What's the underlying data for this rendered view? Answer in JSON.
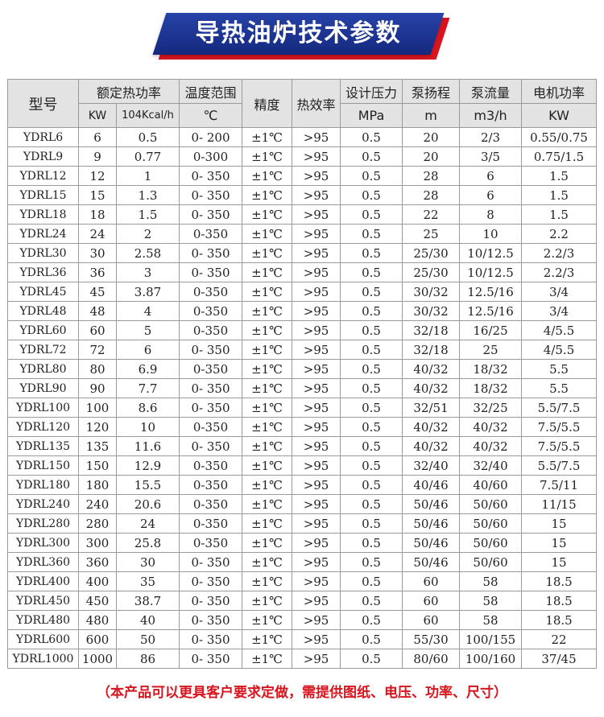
{
  "title": "导热油炉技术参数",
  "table": {
    "headers": {
      "model": "型号",
      "rated_power": "额定热功率",
      "rated_kw": "KW",
      "rated_kcal": "104Kcal/h",
      "temp_range": "温度范围",
      "temp_unit": "℃",
      "precision": "精度",
      "efficiency": "热效率",
      "pressure": "设计压力",
      "pressure_unit": "MPa",
      "pump_head": "泵扬程",
      "pump_head_unit": "m",
      "pump_flow": "泵流量",
      "pump_flow_unit": "m3/h",
      "motor_power": "电机功率",
      "motor_power_unit": "KW"
    },
    "rows": [
      [
        "YDRL6",
        "6",
        "0.5",
        "0- 200",
        "±1℃",
        ">95",
        "0.5",
        "20",
        "2/3",
        "0.55/0.75"
      ],
      [
        "YDRL9",
        "9",
        "0.77",
        "0-300",
        "±1℃",
        ">95",
        "0.5",
        "20",
        "3/5",
        "0.75/1.5"
      ],
      [
        "YDRL12",
        "12",
        "1",
        "0- 350",
        "±1℃",
        ">95",
        "0.5",
        "28",
        "6",
        "1.5"
      ],
      [
        "YDRL15",
        "15",
        "1.3",
        "0- 350",
        "±1℃",
        ">95",
        "0.5",
        "28",
        "6",
        "1.5"
      ],
      [
        "YDRL18",
        "18",
        "1.5",
        "0- 350",
        "±1℃",
        ">95",
        "0.5",
        "22",
        "8",
        "1.5"
      ],
      [
        "YDRL24",
        "24",
        "2",
        "0-350",
        "±1℃",
        ">95",
        "0.5",
        "25",
        "10",
        "2.2"
      ],
      [
        "YDRL30",
        "30",
        "2.58",
        "0- 350",
        "±1℃",
        ">95",
        "0.5",
        "25/30",
        "10/12.5",
        "2.2/3"
      ],
      [
        "YDRL36",
        "36",
        "3",
        "0- 350",
        "±1℃",
        ">95",
        "0.5",
        "25/30",
        "10/12.5",
        "2.2/3"
      ],
      [
        "YDRL45",
        "45",
        "3.87",
        "0-350",
        "±1℃",
        ">95",
        "0.5",
        "30/32",
        "12.5/16",
        "3/4"
      ],
      [
        "YDRL48",
        "48",
        "4",
        "0-350",
        "±1℃",
        ">95",
        "0.5",
        "30/32",
        "12.5/16",
        "3/4"
      ],
      [
        "YDRL60",
        "60",
        "5",
        "0-350",
        "±1℃",
        ">95",
        "0.5",
        "32/18",
        "16/25",
        "4/5.5"
      ],
      [
        "YDRL72",
        "72",
        "6",
        "0- 350",
        "±1℃",
        ">95",
        "0.5",
        "32/18",
        "25",
        "4/5.5"
      ],
      [
        "YDRL80",
        "80",
        "6.9",
        "0-350",
        "±1℃",
        ">95",
        "0.5",
        "40/32",
        "18/32",
        "5.5"
      ],
      [
        "YDRL90",
        "90",
        "7.7",
        "0- 350",
        "±1℃",
        ">95",
        "0.5",
        "40/32",
        "18/32",
        "5.5"
      ],
      [
        "YDRL100",
        "100",
        "8.6",
        "0- 350",
        "±1℃",
        ">95",
        "0.5",
        "32/51",
        "32/25",
        "5.5/7.5"
      ],
      [
        "YDRL120",
        "120",
        "10",
        "0-350",
        "±1℃",
        ">95",
        "0.5",
        "40/32",
        "40/32",
        "7.5/5.5"
      ],
      [
        "YDRL135",
        "135",
        "11.6",
        "0- 350",
        "±1℃",
        ">95",
        "0.5",
        "40/32",
        "40/32",
        "7.5/5.5"
      ],
      [
        "YDRL150",
        "150",
        "12.9",
        "0-350",
        "±1℃",
        ">95",
        "0.5",
        "32/40",
        "32/40",
        "5.5/7.5"
      ],
      [
        "YDRL180",
        "180",
        "15.5",
        "0-350",
        "±1℃",
        ">95",
        "0.5",
        "40/46",
        "40/60",
        "7.5/11"
      ],
      [
        "YDRL240",
        "240",
        "20.6",
        "0-350",
        "±1℃",
        ">95",
        "0.5",
        "50/46",
        "50/60",
        "11/15"
      ],
      [
        "YDRL280",
        "280",
        "24",
        "0-350",
        "±1℃",
        ">95",
        "0.5",
        "50/46",
        "50/60",
        "15"
      ],
      [
        "YDRL300",
        "300",
        "25.8",
        "0-350",
        "±1℃",
        ">95",
        "0.5",
        "50/46",
        "50/60",
        "15"
      ],
      [
        "YDRL360",
        "360",
        "30",
        "0- 350",
        "±1℃",
        ">95",
        "0.5",
        "50/46",
        "50/60",
        "15"
      ],
      [
        "YDRL400",
        "400",
        "35",
        "0- 350",
        "±1℃",
        ">95",
        "0.5",
        "60",
        "58",
        "18.5"
      ],
      [
        "YDRL450",
        "450",
        "38.7",
        "0- 350",
        "±1℃",
        ">95",
        "0.5",
        "60",
        "58",
        "18.5"
      ],
      [
        "YDRL480",
        "480",
        "40",
        "0- 350",
        "±1℃",
        ">95",
        "0.5",
        "60",
        "58",
        "18.5"
      ],
      [
        "YDRL600",
        "600",
        "50",
        "0- 350",
        "±1℃",
        ">95",
        "0.5",
        "55/30",
        "100/155",
        "22"
      ],
      [
        "YDRL1000",
        "1000",
        "86",
        "0- 350",
        "±1℃",
        ">95",
        "0.5",
        "80/60",
        "100/160",
        "37/45"
      ]
    ]
  },
  "footnote": "（本产品可以更具客户要求定做，需提供图纸、电压、功率、尺寸）",
  "colors": {
    "banner_blue": "#1f3a9e",
    "banner_red": "#d8141d",
    "header_bg": "#e3e3e3",
    "footnote_red": "#d8141d"
  }
}
